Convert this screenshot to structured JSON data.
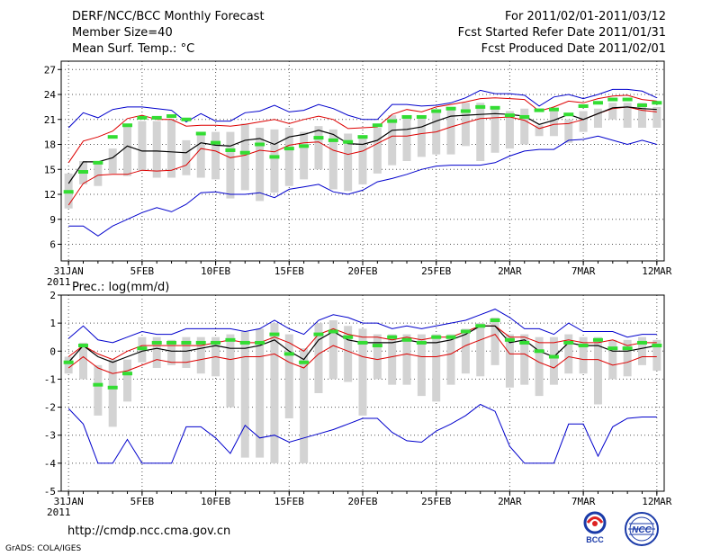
{
  "header": {
    "title": "DERF/NCC/BCC Monthly Forecast",
    "member_size": "Member Size=40",
    "variable": "Mean Surf. Temp.: °C",
    "period": "For 2011/02/01-2011/03/12",
    "started": "Fcst Started Refer Date 2011/01/31",
    "produced": "Fcst Produced Date 2011/02/01"
  },
  "footer": {
    "url": "http://cmdp.ncc.cma.gov.cn",
    "credit": "GrADS: COLA/IGES",
    "logo_bcc": "BCC",
    "logo_ncc": "NCC"
  },
  "colors": {
    "box": "#d3d3d3",
    "median": "#33dd33",
    "mean": "#000000",
    "std": "#dd0000",
    "range": "#0000cc",
    "grid": "#555555"
  },
  "chart_data": [
    {
      "type": "box-line",
      "title": "Mean Surf. Temp.: °C",
      "xlabels": [
        "31JAN",
        "5FEB",
        "10FEB",
        "15FEB",
        "20FEB",
        "25FEB",
        "2MAR",
        "7MAR",
        "12MAR"
      ],
      "xlabel_days": [
        0,
        5,
        10,
        15,
        20,
        25,
        30,
        35,
        40
      ],
      "year": "2011",
      "ylim": [
        4,
        28
      ],
      "yticks": [
        6,
        9,
        12,
        15,
        18,
        21,
        24,
        27
      ],
      "days": [
        0,
        1,
        2,
        3,
        4,
        5,
        6,
        7,
        8,
        9,
        10,
        11,
        12,
        13,
        14,
        15,
        16,
        17,
        18,
        19,
        20,
        21,
        22,
        23,
        24,
        25,
        26,
        27,
        28,
        29,
        30,
        31,
        32,
        33,
        34,
        35,
        36,
        37,
        38,
        39,
        40
      ],
      "max": [
        20.0,
        21.8,
        21.2,
        22.2,
        22.5,
        22.5,
        22.3,
        22.1,
        20.7,
        21.7,
        20.8,
        20.8,
        21.8,
        22.0,
        22.7,
        21.9,
        22.1,
        22.8,
        22.3,
        21.5,
        21.0,
        21.0,
        22.8,
        22.8,
        22.6,
        22.7,
        23.0,
        23.6,
        24.5,
        24.1,
        24.1,
        23.9,
        22.6,
        23.7,
        24.0,
        23.5,
        24.0,
        24.6,
        24.6,
        24.4,
        23.6
      ],
      "plus_std": [
        15.8,
        18.4,
        18.9,
        19.6,
        21.1,
        21.5,
        21.0,
        21.0,
        20.2,
        20.3,
        20.3,
        20.2,
        20.4,
        20.7,
        21.0,
        20.5,
        21.0,
        21.4,
        21.0,
        19.9,
        20.0,
        20.1,
        21.6,
        22.2,
        21.9,
        22.5,
        22.8,
        23.1,
        23.5,
        23.6,
        23.5,
        23.4,
        22.0,
        22.5,
        23.2,
        23.0,
        23.5,
        23.8,
        23.9,
        23.4,
        23.2
      ],
      "mean": [
        13.3,
        15.9,
        15.9,
        16.4,
        17.8,
        17.2,
        17.2,
        17.1,
        17.0,
        18.2,
        17.9,
        17.8,
        18.5,
        18.7,
        18.0,
        18.9,
        19.2,
        19.7,
        19.2,
        18.1,
        18.0,
        18.5,
        19.7,
        19.8,
        20.1,
        20.8,
        21.4,
        21.5,
        21.6,
        21.7,
        21.6,
        21.4,
        20.4,
        20.9,
        21.6,
        21.0,
        21.7,
        22.4,
        22.5,
        22.3,
        22.2
      ],
      "minus_std": [
        10.7,
        13.3,
        14.3,
        14.4,
        14.4,
        14.9,
        14.8,
        14.9,
        15.5,
        17.5,
        17.2,
        16.4,
        16.7,
        17.3,
        17.1,
        17.9,
        18.2,
        18.3,
        17.3,
        16.8,
        17.2,
        18.1,
        19.0,
        19.0,
        19.3,
        19.5,
        20.1,
        20.6,
        21.1,
        21.2,
        21.3,
        20.9,
        19.9,
        20.4,
        20.5,
        21.0,
        21.7,
        22.3,
        22.5,
        22.1,
        21.9
      ],
      "min": [
        8.2,
        8.2,
        7.0,
        8.2,
        9.0,
        9.8,
        10.4,
        9.9,
        10.8,
        12.2,
        12.3,
        12.0,
        12.0,
        12.2,
        11.6,
        12.6,
        12.9,
        13.2,
        12.3,
        12.0,
        12.5,
        13.5,
        13.9,
        14.4,
        15.0,
        15.4,
        15.5,
        15.5,
        15.5,
        15.8,
        16.6,
        17.2,
        17.4,
        17.4,
        18.5,
        18.6,
        19.0,
        18.5,
        18.0,
        18.5,
        18.0
      ],
      "box_hi": [
        14.5,
        16.0,
        16.0,
        17.5,
        20.5,
        20.8,
        20.8,
        21.0,
        18.5,
        19.5,
        19.5,
        19.5,
        20.5,
        20.0,
        19.8,
        20.0,
        19.5,
        20.2,
        19.8,
        19.3,
        19.0,
        20.0,
        21.5,
        21.5,
        21.5,
        22.0,
        22.5,
        23.0,
        23.0,
        22.5,
        22.0,
        22.3,
        20.3,
        22.2,
        21.0,
        22.0,
        22.3,
        23.0,
        23.0,
        23.0,
        22.5
      ],
      "box_lo": [
        10.3,
        13.2,
        13.0,
        14.5,
        14.2,
        14.8,
        14.0,
        14.0,
        14.3,
        14.0,
        13.8,
        11.5,
        12.5,
        11.2,
        12.2,
        13.0,
        13.8,
        15.0,
        12.6,
        12.4,
        13.2,
        14.5,
        15.5,
        16.0,
        16.5,
        16.8,
        16.8,
        17.8,
        16.0,
        17.0,
        17.5,
        18.0,
        19.0,
        19.0,
        18.2,
        19.5,
        20.0,
        21.0,
        20.0,
        20.0,
        20.0
      ],
      "median": [
        12.3,
        14.7,
        15.8,
        18.9,
        20.3,
        21.2,
        21.2,
        21.4,
        21.0,
        19.3,
        18.2,
        17.3,
        17.0,
        18.0,
        16.5,
        17.5,
        17.8,
        18.8,
        18.5,
        18.3,
        18.9,
        20.3,
        20.8,
        21.3,
        21.3,
        22.0,
        22.3,
        22.0,
        22.5,
        22.4,
        21.5,
        21.3,
        22.1,
        22.2,
        21.6,
        22.6,
        23.0,
        23.4,
        23.4,
        22.7,
        23.0
      ]
    },
    {
      "type": "box-line",
      "title": "Prec.: log(mm/d)",
      "xlabels": [
        "31JAN",
        "5FEB",
        "10FEB",
        "15FEB",
        "20FEB",
        "25FEB",
        "2MAR",
        "7MAR",
        "12MAR"
      ],
      "xlabel_days": [
        0,
        5,
        10,
        15,
        20,
        25,
        30,
        35,
        40
      ],
      "year": "2011",
      "ylim": [
        -5,
        2
      ],
      "yticks": [
        -5,
        -4,
        -3,
        -2,
        -1,
        0,
        1,
        2
      ],
      "days": [
        0,
        1,
        2,
        3,
        4,
        5,
        6,
        7,
        8,
        9,
        10,
        11,
        12,
        13,
        14,
        15,
        16,
        17,
        18,
        19,
        20,
        21,
        22,
        23,
        24,
        25,
        26,
        27,
        28,
        29,
        30,
        31,
        32,
        33,
        34,
        35,
        36,
        37,
        38,
        39,
        40
      ],
      "max": [
        0.45,
        0.9,
        0.4,
        0.3,
        0.5,
        0.7,
        0.6,
        0.6,
        0.8,
        0.8,
        0.8,
        0.8,
        0.7,
        0.8,
        1.1,
        0.8,
        0.6,
        1.1,
        1.3,
        1.2,
        1.0,
        1.0,
        0.8,
        0.9,
        0.8,
        0.9,
        1.0,
        1.1,
        1.3,
        1.5,
        1.2,
        0.8,
        0.8,
        0.6,
        1.0,
        0.7,
        0.7,
        0.7,
        0.5,
        0.6,
        0.6
      ],
      "plus_std": [
        -0.2,
        0.2,
        -0.1,
        -0.3,
        0.0,
        0.2,
        0.2,
        0.2,
        0.2,
        0.2,
        0.3,
        0.4,
        0.3,
        0.3,
        0.5,
        0.3,
        0.0,
        0.6,
        0.8,
        0.6,
        0.5,
        0.5,
        0.4,
        0.5,
        0.4,
        0.5,
        0.5,
        0.7,
        0.9,
        0.9,
        0.5,
        0.5,
        0.3,
        0.3,
        0.4,
        0.3,
        0.3,
        0.4,
        0.2,
        0.3,
        0.3
      ],
      "mean": [
        -0.4,
        0.2,
        -0.2,
        -0.4,
        -0.2,
        0.0,
        0.1,
        0.0,
        0.0,
        0.1,
        0.2,
        0.1,
        0.1,
        0.2,
        0.4,
        0.0,
        -0.3,
        0.4,
        0.7,
        0.4,
        0.3,
        0.3,
        0.3,
        0.4,
        0.3,
        0.3,
        0.4,
        0.6,
        0.9,
        0.9,
        0.3,
        0.4,
        0.0,
        -0.2,
        0.3,
        0.2,
        0.2,
        0.0,
        0.0,
        0.1,
        0.2
      ],
      "minus_std": [
        -0.6,
        -0.2,
        -0.6,
        -0.8,
        -0.7,
        -0.5,
        -0.3,
        -0.4,
        -0.4,
        -0.3,
        -0.2,
        -0.3,
        -0.2,
        -0.2,
        -0.1,
        -0.4,
        -0.6,
        -0.1,
        0.2,
        0.0,
        -0.2,
        -0.3,
        -0.2,
        -0.1,
        -0.2,
        -0.2,
        -0.1,
        0.2,
        0.4,
        0.6,
        -0.1,
        -0.1,
        -0.4,
        -0.6,
        -0.2,
        -0.3,
        -0.3,
        -0.5,
        -0.4,
        -0.2,
        -0.2
      ],
      "min": [
        -2.05,
        -2.6,
        -4.0,
        -4.0,
        -3.15,
        -4.0,
        -4.0,
        -4.0,
        -2.7,
        -2.7,
        -3.1,
        -3.65,
        -2.65,
        -3.1,
        -3.0,
        -3.25,
        -3.1,
        -2.95,
        -2.8,
        -2.6,
        -2.4,
        -2.4,
        -2.9,
        -3.2,
        -3.25,
        -2.85,
        -2.6,
        -2.3,
        -1.9,
        -2.15,
        -3.4,
        -4.0,
        -4.0,
        -4.0,
        -2.6,
        -2.6,
        -3.75,
        -2.7,
        -2.4,
        -2.35,
        -2.35
      ],
      "box_hi": [
        -0.2,
        0.3,
        -0.5,
        -0.3,
        -0.3,
        0.5,
        0.5,
        0.4,
        0.5,
        0.5,
        0.5,
        0.6,
        0.7,
        0.8,
        1.0,
        0.6,
        0.1,
        1.0,
        1.1,
        0.9,
        0.8,
        0.6,
        0.6,
        0.6,
        0.6,
        0.6,
        0.6,
        0.8,
        1.0,
        1.2,
        0.6,
        0.6,
        0.5,
        0.5,
        0.6,
        0.5,
        0.5,
        0.4,
        0.4,
        0.5,
        0.4
      ],
      "box_lo": [
        -0.8,
        -1.0,
        -2.3,
        -2.7,
        -1.8,
        -0.4,
        -0.6,
        -0.5,
        -0.6,
        -0.8,
        -0.9,
        -2.0,
        -3.8,
        -3.8,
        -4.0,
        -2.4,
        -4.0,
        -1.5,
        -1.0,
        -1.1,
        -2.3,
        -1.0,
        -1.2,
        -1.2,
        -1.6,
        -1.8,
        -1.2,
        -0.8,
        -0.9,
        -0.5,
        -1.3,
        -1.2,
        -1.6,
        -1.2,
        -0.8,
        -0.8,
        -1.9,
        -1.0,
        -0.9,
        -0.5,
        -0.7
      ],
      "median": [
        -0.4,
        0.2,
        -1.2,
        -1.3,
        -0.8,
        0.1,
        0.3,
        0.3,
        0.3,
        0.3,
        0.3,
        0.4,
        0.3,
        0.3,
        0.6,
        -0.1,
        -0.4,
        0.6,
        0.7,
        0.5,
        0.3,
        0.2,
        0.5,
        0.4,
        0.3,
        0.5,
        0.5,
        0.7,
        0.9,
        1.1,
        0.4,
        0.3,
        0.0,
        -0.2,
        0.3,
        0.2,
        0.4,
        0.1,
        0.1,
        0.3,
        0.2
      ]
    }
  ]
}
